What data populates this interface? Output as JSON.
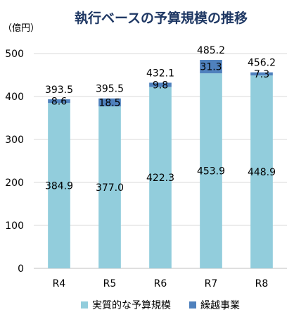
{
  "chart_data": {
    "type": "bar",
    "stacked": true,
    "title": "執行ベースの予算規模の推移",
    "unit_label": "（億円）",
    "categories": [
      "R4",
      "R5",
      "R6",
      "R7",
      "R8"
    ],
    "series": [
      {
        "name": "実質的な予算規模",
        "values": [
          384.9,
          377.0,
          422.3,
          453.9,
          448.9
        ],
        "color": "#92cddc"
      },
      {
        "name": "繰越事業",
        "values": [
          8.6,
          18.5,
          9.8,
          31.3,
          7.3
        ],
        "color": "#4f81bd"
      }
    ],
    "segment_labels": [
      [
        "384.9",
        "377.0",
        "422.3",
        "453.9",
        "448.9"
      ],
      [
        "8.6",
        "18.5",
        "9.8",
        "31.3",
        "7.3"
      ]
    ],
    "totals": [
      393.5,
      395.5,
      432.1,
      485.2,
      456.2
    ],
    "total_labels": [
      "393.5",
      "395.5",
      "432.1",
      "485.2",
      "456.2"
    ],
    "ylim": [
      0,
      500
    ],
    "yticks": [
      0,
      100,
      200,
      300,
      400,
      500
    ],
    "ytick_labels": [
      "0",
      "100",
      "200",
      "300",
      "400",
      "500"
    ],
    "grid": true,
    "legend_position": "bottom",
    "colors": {
      "title": "#1f3864",
      "grid": "#d9d9d9",
      "axis": "#bfbfbf",
      "text": "#000000"
    }
  }
}
